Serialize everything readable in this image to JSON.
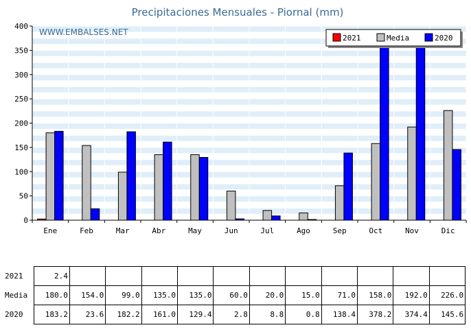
{
  "chart_data": {
    "type": "bar",
    "title": "Precipitaciones Mensuales - Piornal (mm)",
    "watermark": "WWW.EMBALSES.NET",
    "categories": [
      "Ene",
      "Feb",
      "Mar",
      "Abr",
      "May",
      "Jun",
      "Jul",
      "Ago",
      "Sep",
      "Oct",
      "Nov",
      "Dic"
    ],
    "ylim": [
      0,
      400
    ],
    "yticks": [
      0,
      50,
      100,
      150,
      200,
      250,
      300,
      350,
      400
    ],
    "legend_position": "top-right",
    "series": [
      {
        "name": "2021",
        "color": "#ff0000",
        "values": [
          2.4,
          null,
          null,
          null,
          null,
          null,
          null,
          null,
          null,
          null,
          null,
          null
        ]
      },
      {
        "name": "Media",
        "color": "#c0c0c0",
        "values": [
          180.0,
          154.0,
          99.0,
          135.0,
          135.0,
          60.0,
          20.0,
          15.0,
          71.0,
          158.0,
          192.0,
          226.0
        ]
      },
      {
        "name": "2020",
        "color": "#0000ff",
        "values": [
          183.2,
          23.6,
          182.2,
          161.0,
          129.4,
          2.8,
          8.8,
          0.8,
          138.4,
          378.2,
          374.4,
          145.6
        ]
      }
    ],
    "table": {
      "rows": [
        {
          "label": "2021",
          "cells": [
            "2.4",
            "",
            "",
            "",
            "",
            "",
            "",
            "",
            "",
            "",
            "",
            ""
          ]
        },
        {
          "label": "Media",
          "cells": [
            "180.0",
            "154.0",
            "99.0",
            "135.0",
            "135.0",
            "60.0",
            "20.0",
            "15.0",
            "71.0",
            "158.0",
            "192.0",
            "226.0"
          ]
        },
        {
          "label": "2020",
          "cells": [
            "183.2",
            "23.6",
            "182.2",
            "161.0",
            "129.4",
            "2.8",
            "8.8",
            "0.8",
            "138.4",
            "378.2",
            "374.4",
            "145.6"
          ]
        }
      ]
    }
  }
}
